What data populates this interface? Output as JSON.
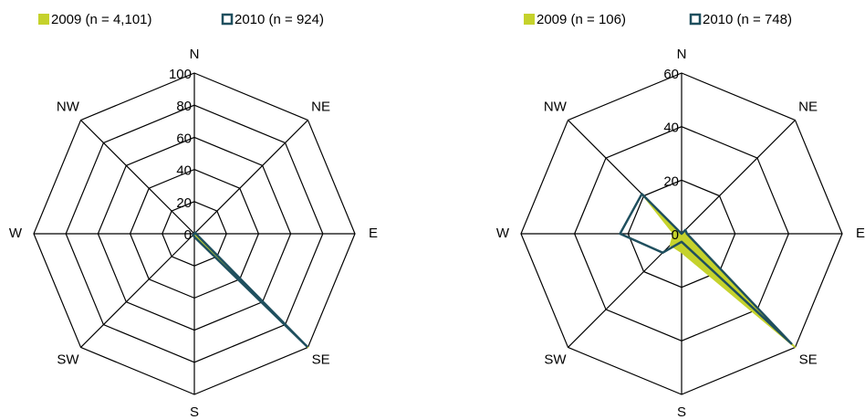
{
  "chart_data": [
    {
      "type": "radar",
      "categories": [
        "N",
        "NE",
        "E",
        "SE",
        "S",
        "SW",
        "W",
        "NW"
      ],
      "series": [
        {
          "name": "2009 (n = 4,101)",
          "color": "#c5d22c",
          "style": "filled",
          "values": [
            0,
            1,
            1,
            100,
            2,
            1,
            0,
            0
          ]
        },
        {
          "name": "2010 (n = 924)",
          "color": "#1f4f5e",
          "style": "outline",
          "values": [
            0,
            1,
            1,
            99,
            2,
            1,
            0,
            0
          ]
        }
      ],
      "ylim": [
        0,
        100
      ],
      "yticks": [
        0,
        20,
        40,
        60,
        80,
        100
      ]
    },
    {
      "type": "radar",
      "categories": [
        "N",
        "NE",
        "E",
        "SE",
        "S",
        "SW",
        "W",
        "NW"
      ],
      "series": [
        {
          "name": "2009 (n = 106)",
          "color": "#c5d22c",
          "style": "filled",
          "values": [
            0,
            2,
            2,
            60,
            7,
            6,
            3,
            21
          ]
        },
        {
          "name": "2010 (n = 748)",
          "color": "#1f4f5e",
          "style": "outline",
          "values": [
            0,
            2,
            2,
            58,
            3,
            10,
            23,
            21
          ]
        }
      ],
      "ylim": [
        0,
        60
      ],
      "yticks": [
        0,
        20,
        40,
        60
      ]
    }
  ]
}
